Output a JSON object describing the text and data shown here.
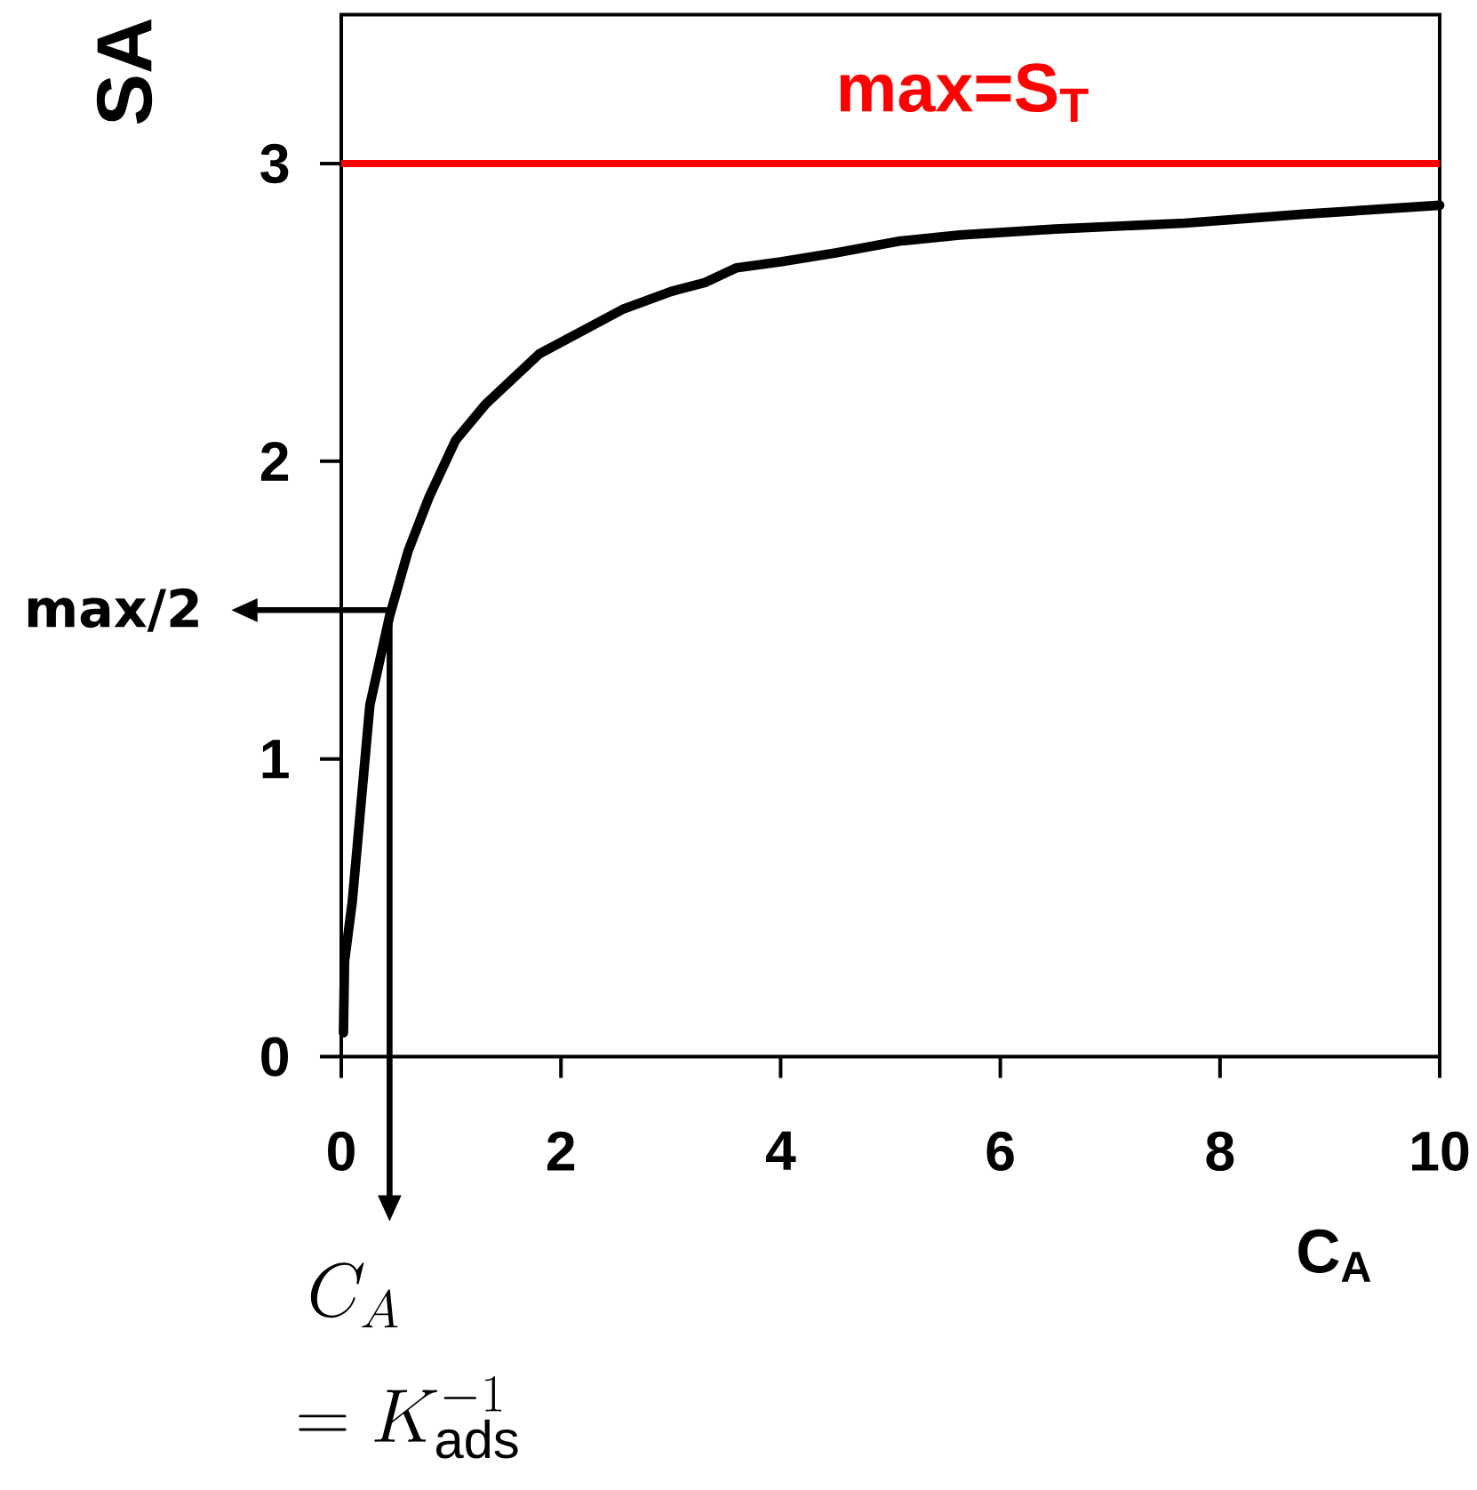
{
  "chart_data": {
    "type": "line",
    "xlabel": "C$_{A}$",
    "ylabel": "SA",
    "x": [
      0.02,
      0.03,
      0.1,
      0.26,
      0.44,
      0.61,
      0.8,
      1.04,
      1.31,
      1.8,
      2.56,
      3.0,
      3.31,
      3.6,
      4.0,
      4.5,
      5.09,
      5.63,
      6.5,
      7.68,
      8.76,
      10
    ],
    "values": [
      0.08,
      0.32,
      0.52,
      1.18,
      1.48,
      1.7,
      1.88,
      2.07,
      2.19,
      2.36,
      2.51,
      2.57,
      2.6,
      2.65,
      2.67,
      2.7,
      2.74,
      2.76,
      2.78,
      2.8,
      2.83,
      2.86
    ],
    "color": "#000000",
    "xlim": [
      0,
      10
    ],
    "ylim": [
      0,
      3.5
    ],
    "xticks": [
      0,
      2,
      4,
      6,
      8,
      10
    ],
    "yticks": [
      0,
      1,
      2,
      3
    ],
    "ref_lines": [
      {
        "axis": "y",
        "value": 3,
        "label": "max=S$_{T}$",
        "color": "#ff0000"
      },
      {
        "axis": "y",
        "value": 1.5,
        "label": "max/2"
      },
      {
        "axis": "x",
        "value": 0.44,
        "label": "C_A"
      }
    ],
    "annotations": [
      "= K_{\\mathrm{ads}}^{-1}"
    ]
  }
}
